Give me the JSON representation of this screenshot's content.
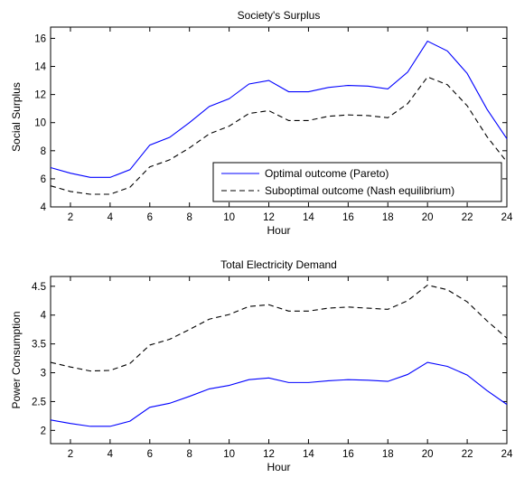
{
  "chart_data": [
    {
      "type": "line",
      "title": "Society's Surplus",
      "xlabel": "Hour",
      "ylabel": "Social Surplus",
      "xlim": [
        1,
        24
      ],
      "ylim": [
        4,
        16.8
      ],
      "xticks": [
        2,
        4,
        6,
        8,
        10,
        12,
        14,
        16,
        18,
        20,
        22,
        24
      ],
      "yticks": [
        4,
        6,
        8,
        10,
        12,
        14,
        16
      ],
      "x": [
        1,
        2,
        3,
        4,
        5,
        6,
        7,
        8,
        9,
        10,
        11,
        12,
        13,
        14,
        15,
        16,
        17,
        18,
        19,
        20,
        21,
        22,
        23,
        24
      ],
      "series": [
        {
          "name": "Optimal outcome (Pareto)",
          "style": "solid",
          "color": "#0000ff",
          "values": [
            6.8,
            6.4,
            6.1,
            6.1,
            6.65,
            8.4,
            8.95,
            10.0,
            11.15,
            11.7,
            12.75,
            13.0,
            12.2,
            12.2,
            12.5,
            12.65,
            12.6,
            12.4,
            13.6,
            15.8,
            15.1,
            13.5,
            10.95,
            8.85
          ]
        },
        {
          "name": "Suboptimal outcome (Nash equilibrium)",
          "style": "dashed",
          "color": "#000000",
          "values": [
            5.5,
            5.1,
            4.9,
            4.9,
            5.4,
            6.85,
            7.35,
            8.2,
            9.2,
            9.75,
            10.65,
            10.85,
            10.15,
            10.15,
            10.45,
            10.55,
            10.5,
            10.35,
            11.35,
            13.25,
            12.7,
            11.2,
            9.0,
            7.2
          ]
        }
      ],
      "legend": "bottom-right"
    },
    {
      "type": "line",
      "title": "Total Electricity Demand",
      "xlabel": "Hour",
      "ylabel": "Power Consumption",
      "xlim": [
        1,
        24
      ],
      "ylim": [
        1.77,
        4.67
      ],
      "xticks": [
        2,
        4,
        6,
        8,
        10,
        12,
        14,
        16,
        18,
        20,
        22,
        24
      ],
      "yticks": [
        2,
        2.5,
        3,
        3.5,
        4,
        4.5
      ],
      "x": [
        1,
        2,
        3,
        4,
        5,
        6,
        7,
        8,
        9,
        10,
        11,
        12,
        13,
        14,
        15,
        16,
        17,
        18,
        19,
        20,
        21,
        22,
        23,
        24
      ],
      "series": [
        {
          "style": "solid",
          "color": "#0000ff",
          "values": [
            2.18,
            2.12,
            2.07,
            2.07,
            2.16,
            2.4,
            2.47,
            2.59,
            2.72,
            2.78,
            2.88,
            2.91,
            2.83,
            2.83,
            2.86,
            2.88,
            2.87,
            2.85,
            2.97,
            3.18,
            3.11,
            2.96,
            2.69,
            2.45
          ]
        },
        {
          "style": "dashed",
          "color": "#000000",
          "values": [
            3.18,
            3.1,
            3.03,
            3.04,
            3.16,
            3.48,
            3.58,
            3.75,
            3.93,
            4.01,
            4.15,
            4.18,
            4.07,
            4.07,
            4.12,
            4.14,
            4.12,
            4.1,
            4.25,
            4.52,
            4.44,
            4.23,
            3.9,
            3.6
          ]
        }
      ]
    }
  ]
}
